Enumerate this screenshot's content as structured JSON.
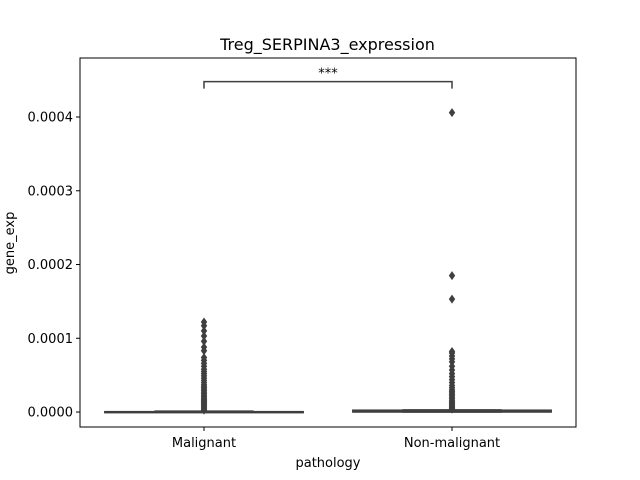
{
  "chart_data": {
    "type": "box",
    "title": "Treg_SERPINA3_expression",
    "xlabel": "pathology",
    "ylabel": "gene_exp",
    "categories": [
      "Malignant",
      "Non-malignant"
    ],
    "ylim": [
      -2.03e-05,
      0.00048
    ],
    "yticks": [
      0.0,
      0.0001,
      0.0002,
      0.0003,
      0.0004
    ],
    "ytick_labels": [
      "0.0000",
      "0.0001",
      "0.0002",
      "0.0003",
      "0.0004"
    ],
    "boxes": [
      {
        "category": "Malignant",
        "q1": 0.0,
        "median": 0.0,
        "q3": 5e-07,
        "whisker_low": 0.0,
        "whisker_high": 1.2e-06,
        "outliers": [
          2.5e-06,
          4e-06,
          5.5e-06,
          7e-06,
          8.5e-06,
          1e-05,
          1.15e-05,
          1.3e-05,
          1.45e-05,
          1.6e-05,
          1.75e-05,
          1.9e-05,
          2.1e-05,
          2.3e-05,
          2.5e-05,
          2.7e-05,
          2.9e-05,
          3.1e-05,
          3.3e-05,
          3.5e-05,
          3.7e-05,
          4e-05,
          4.3e-05,
          4.6e-05,
          4.9e-05,
          5.2e-05,
          5.5e-05,
          5.8e-05,
          6.2e-05,
          6.6e-05,
          7e-05,
          7.4e-05,
          8.3e-05,
          8.8e-05,
          9.6e-05,
          0.000103,
          0.00011,
          0.000117,
          0.000122
        ]
      },
      {
        "category": "Non-malignant",
        "q1": 0.0,
        "median": 5e-07,
        "q3": 2.5e-06,
        "whisker_low": 0.0,
        "whisker_high": 3e-06,
        "outliers": [
          4e-06,
          5e-06,
          6.5e-06,
          8e-06,
          9.5e-06,
          1.1e-05,
          1.25e-05,
          1.4e-05,
          1.6e-05,
          1.8e-05,
          2e-05,
          2.2e-05,
          2.4e-05,
          2.6e-05,
          2.8e-05,
          3e-05,
          3.3e-05,
          3.6e-05,
          4e-05,
          4.4e-05,
          4.8e-05,
          5.2e-05,
          5.7e-05,
          6.2e-05,
          6.8e-05,
          7.2e-05,
          7.6e-05,
          8e-05,
          8.2e-05,
          0.000153,
          0.000185,
          0.000406
        ]
      }
    ],
    "annotation": {
      "text": "***",
      "between": [
        "Malignant",
        "Non-malignant"
      ],
      "y": 0.000448
    },
    "grid": false,
    "colors": {
      "box_face": "#3274a1",
      "line": "#3f3f3f",
      "outlier": "#3f3f3f",
      "text": "#000000"
    }
  }
}
